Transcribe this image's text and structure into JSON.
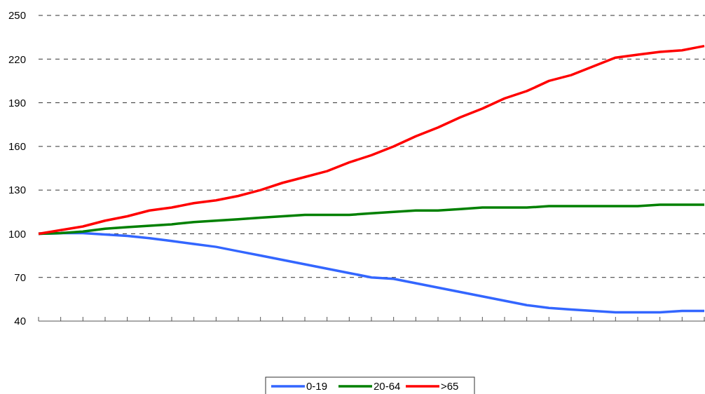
{
  "chart_data": {
    "type": "line",
    "categories": [
      null,
      null,
      null,
      null,
      null,
      null,
      null,
      null,
      null,
      null,
      null,
      null,
      null,
      null,
      null,
      null,
      null,
      null,
      null,
      null,
      null,
      null,
      null,
      null,
      null,
      null,
      null,
      null,
      null,
      null,
      null
    ],
    "series": [
      {
        "name": "0-19",
        "color": "#3366ff",
        "values": [
          100,
          100.5,
          100.5,
          99.5,
          98.5,
          97,
          95,
          93,
          91,
          88,
          85,
          82,
          79,
          76,
          73,
          70,
          69,
          66,
          63,
          60,
          57,
          54,
          51,
          49,
          48,
          47,
          46,
          46,
          46,
          47,
          47
        ]
      },
      {
        "name": "20-64",
        "color": "#008000",
        "values": [
          100,
          100.5,
          101.5,
          103.5,
          104.5,
          105.5,
          106.5,
          108,
          109,
          110,
          111,
          112,
          113,
          113,
          113,
          114,
          115,
          116,
          116,
          117,
          118,
          118,
          118,
          119,
          119,
          119,
          119,
          119,
          120,
          120,
          120
        ]
      },
      {
        "name": ">65",
        "color": "#ff0000",
        "values": [
          100,
          102.5,
          105,
          109,
          112,
          116,
          118,
          121,
          123,
          126,
          130,
          135,
          139,
          143,
          149,
          154,
          160,
          167,
          173,
          180,
          186,
          193,
          198,
          205,
          209,
          215,
          221,
          223,
          225,
          226,
          229
        ]
      }
    ],
    "ylim": [
      40,
      250
    ],
    "yticks": [
      40,
      70,
      100,
      130,
      160,
      190,
      220,
      250
    ],
    "grid": "y",
    "legend": "bottom",
    "line_style": "solid",
    "marker": "none"
  }
}
